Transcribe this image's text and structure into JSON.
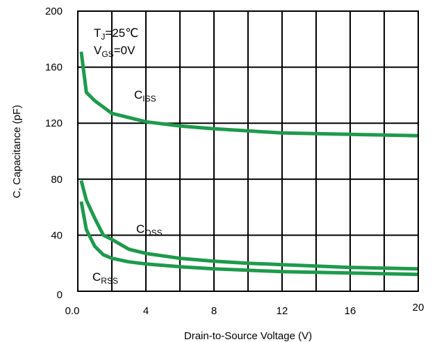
{
  "chart_data": {
    "type": "line",
    "xlabel": "Drain-to-Source Voltage (V)",
    "ylabel": "C, Capacitance (pF)",
    "xlim": [
      0,
      20
    ],
    "ylim": [
      0,
      200
    ],
    "x_ticks": [
      "0.0",
      "4",
      "8",
      "12",
      "16",
      "20"
    ],
    "x_tick_values": [
      0,
      4,
      8,
      12,
      16,
      20
    ],
    "y_ticks": [
      "0",
      "40",
      "80",
      "120",
      "160",
      "200"
    ],
    "y_tick_values": [
      0,
      40,
      80,
      120,
      160,
      200
    ],
    "grid": true,
    "series_color": "#1e9a4c",
    "series": [
      {
        "name": "Ciss",
        "x": [
          0.2,
          0.5,
          1,
          2,
          4,
          6,
          8,
          10,
          12,
          14,
          16,
          18,
          20
        ],
        "values": [
          171,
          142,
          136,
          127,
          121,
          118,
          116,
          114.5,
          113,
          112.5,
          112,
          111.5,
          111
        ]
      },
      {
        "name": "Coss",
        "x": [
          0.2,
          0.5,
          1,
          1.5,
          2,
          3,
          4,
          6,
          8,
          10,
          12,
          14,
          16,
          18,
          20
        ],
        "values": [
          79,
          65,
          52,
          40,
          37,
          30,
          27,
          23.5,
          21.5,
          20,
          19,
          18,
          17,
          16.5,
          16
        ]
      },
      {
        "name": "Crss",
        "x": [
          0.2,
          0.5,
          1,
          1.5,
          2,
          3,
          4,
          6,
          8,
          10,
          12,
          14,
          16,
          18,
          20
        ],
        "values": [
          64,
          44,
          32,
          26,
          23.5,
          21,
          19.5,
          17.5,
          16,
          15,
          14,
          13.5,
          13,
          12.5,
          12
        ]
      }
    ],
    "conditions": {
      "tj": {
        "main": "T",
        "sub": "J",
        "rest": "=25℃"
      },
      "vgs": {
        "main": "V",
        "sub": "GS",
        "rest": "=0V"
      }
    },
    "series_labels": [
      {
        "main": "C",
        "sub": "ISS"
      },
      {
        "main": "C",
        "sub": "OSS"
      },
      {
        "main": "C",
        "sub": "RSS"
      }
    ]
  }
}
